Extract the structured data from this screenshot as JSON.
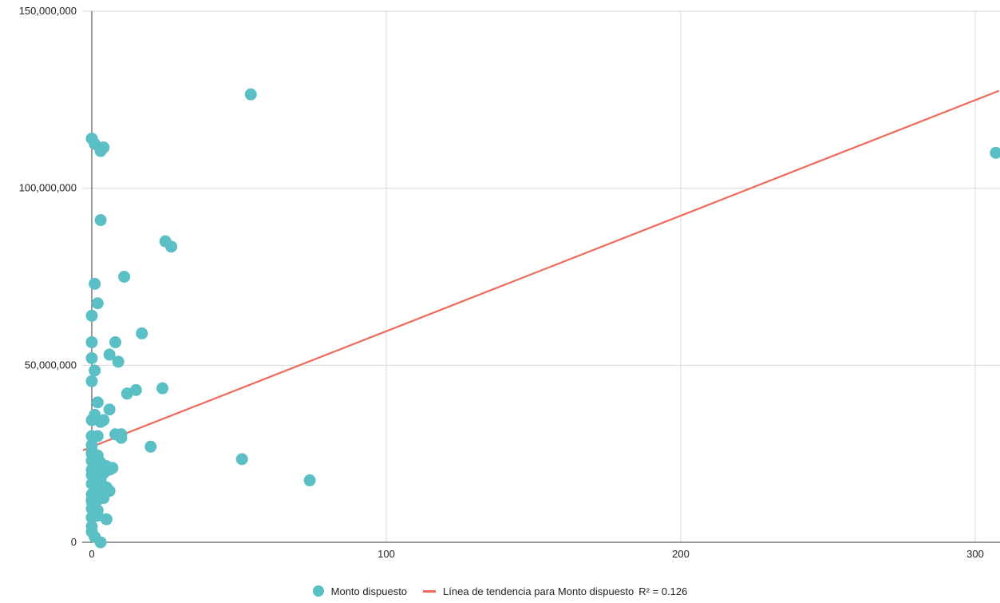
{
  "chart_data": {
    "type": "scatter",
    "xlim": [
      -3,
      308
    ],
    "ylim": [
      0,
      150000000
    ],
    "x_ticks": [
      0,
      100,
      200,
      300
    ],
    "x_tick_labels": [
      "0",
      "100",
      "200",
      "300"
    ],
    "y_ticks": [
      0,
      50000000,
      100000000,
      150000000
    ],
    "y_tick_labels": [
      "0",
      "50,000,000",
      "100,000,000",
      "150,000,000"
    ],
    "grid": true,
    "legend_position": "bottom",
    "series": [
      {
        "name": "Monto dispuesto",
        "color": "#5bc0c6",
        "points": [
          [
            54,
            126500000
          ],
          [
            307,
            110000000
          ],
          [
            0,
            114000000
          ],
          [
            1,
            112500000
          ],
          [
            4,
            111500000
          ],
          [
            3,
            110500000
          ],
          [
            3,
            91000000
          ],
          [
            25,
            85000000
          ],
          [
            27,
            83500000
          ],
          [
            11,
            75000000
          ],
          [
            1,
            73000000
          ],
          [
            2,
            67500000
          ],
          [
            0,
            64000000
          ],
          [
            17,
            59000000
          ],
          [
            0,
            56500000
          ],
          [
            8,
            56500000
          ],
          [
            6,
            53000000
          ],
          [
            0,
            52000000
          ],
          [
            9,
            51000000
          ],
          [
            1,
            48500000
          ],
          [
            0,
            45500000
          ],
          [
            15,
            43000000
          ],
          [
            24,
            43500000
          ],
          [
            12,
            42000000
          ],
          [
            2,
            39500000
          ],
          [
            6,
            37500000
          ],
          [
            1,
            36000000
          ],
          [
            0,
            34500000
          ],
          [
            3,
            34000000
          ],
          [
            4,
            34500000
          ],
          [
            8,
            30500000
          ],
          [
            10,
            30500000
          ],
          [
            0,
            30000000
          ],
          [
            2,
            30000000
          ],
          [
            10,
            29500000
          ],
          [
            0,
            27500000
          ],
          [
            20,
            27000000
          ],
          [
            51,
            23500000
          ],
          [
            74,
            17500000
          ],
          [
            0,
            25000000
          ],
          [
            2,
            24500000
          ],
          [
            0,
            23000000
          ],
          [
            3,
            22500000
          ],
          [
            5,
            21500000
          ],
          [
            7,
            21000000
          ],
          [
            1,
            21000000
          ],
          [
            0,
            20500000
          ],
          [
            2,
            20000000
          ],
          [
            4,
            19500000
          ],
          [
            0,
            19000000
          ],
          [
            1,
            18000000
          ],
          [
            3,
            17500000
          ],
          [
            0,
            16500000
          ],
          [
            2,
            16000000
          ],
          [
            5,
            15500000
          ],
          [
            6,
            14500000
          ],
          [
            1,
            14000000
          ],
          [
            0,
            13500000
          ],
          [
            3,
            13000000
          ],
          [
            4,
            12500000
          ],
          [
            2,
            12000000
          ],
          [
            0,
            11500000
          ],
          [
            1,
            10500000
          ],
          [
            0,
            9500000
          ],
          [
            2,
            9000000
          ],
          [
            1,
            8000000
          ],
          [
            0,
            7000000
          ],
          [
            5,
            6500000
          ],
          [
            0,
            4500000
          ],
          [
            0,
            3000000
          ],
          [
            1,
            1500000
          ],
          [
            3,
            0
          ],
          [
            0,
            26000000
          ],
          [
            1,
            22000000
          ],
          [
            6,
            20500000
          ],
          [
            0,
            12000000
          ],
          [
            2,
            7500000
          ]
        ]
      }
    ],
    "trendline": {
      "name": "Línea de tendencia para Monto dispuesto",
      "color": "#ef6a5b",
      "x_range": [
        -3,
        308
      ],
      "y_range": [
        26000000,
        127500000
      ],
      "r2_label": "R² = 0.126"
    }
  }
}
